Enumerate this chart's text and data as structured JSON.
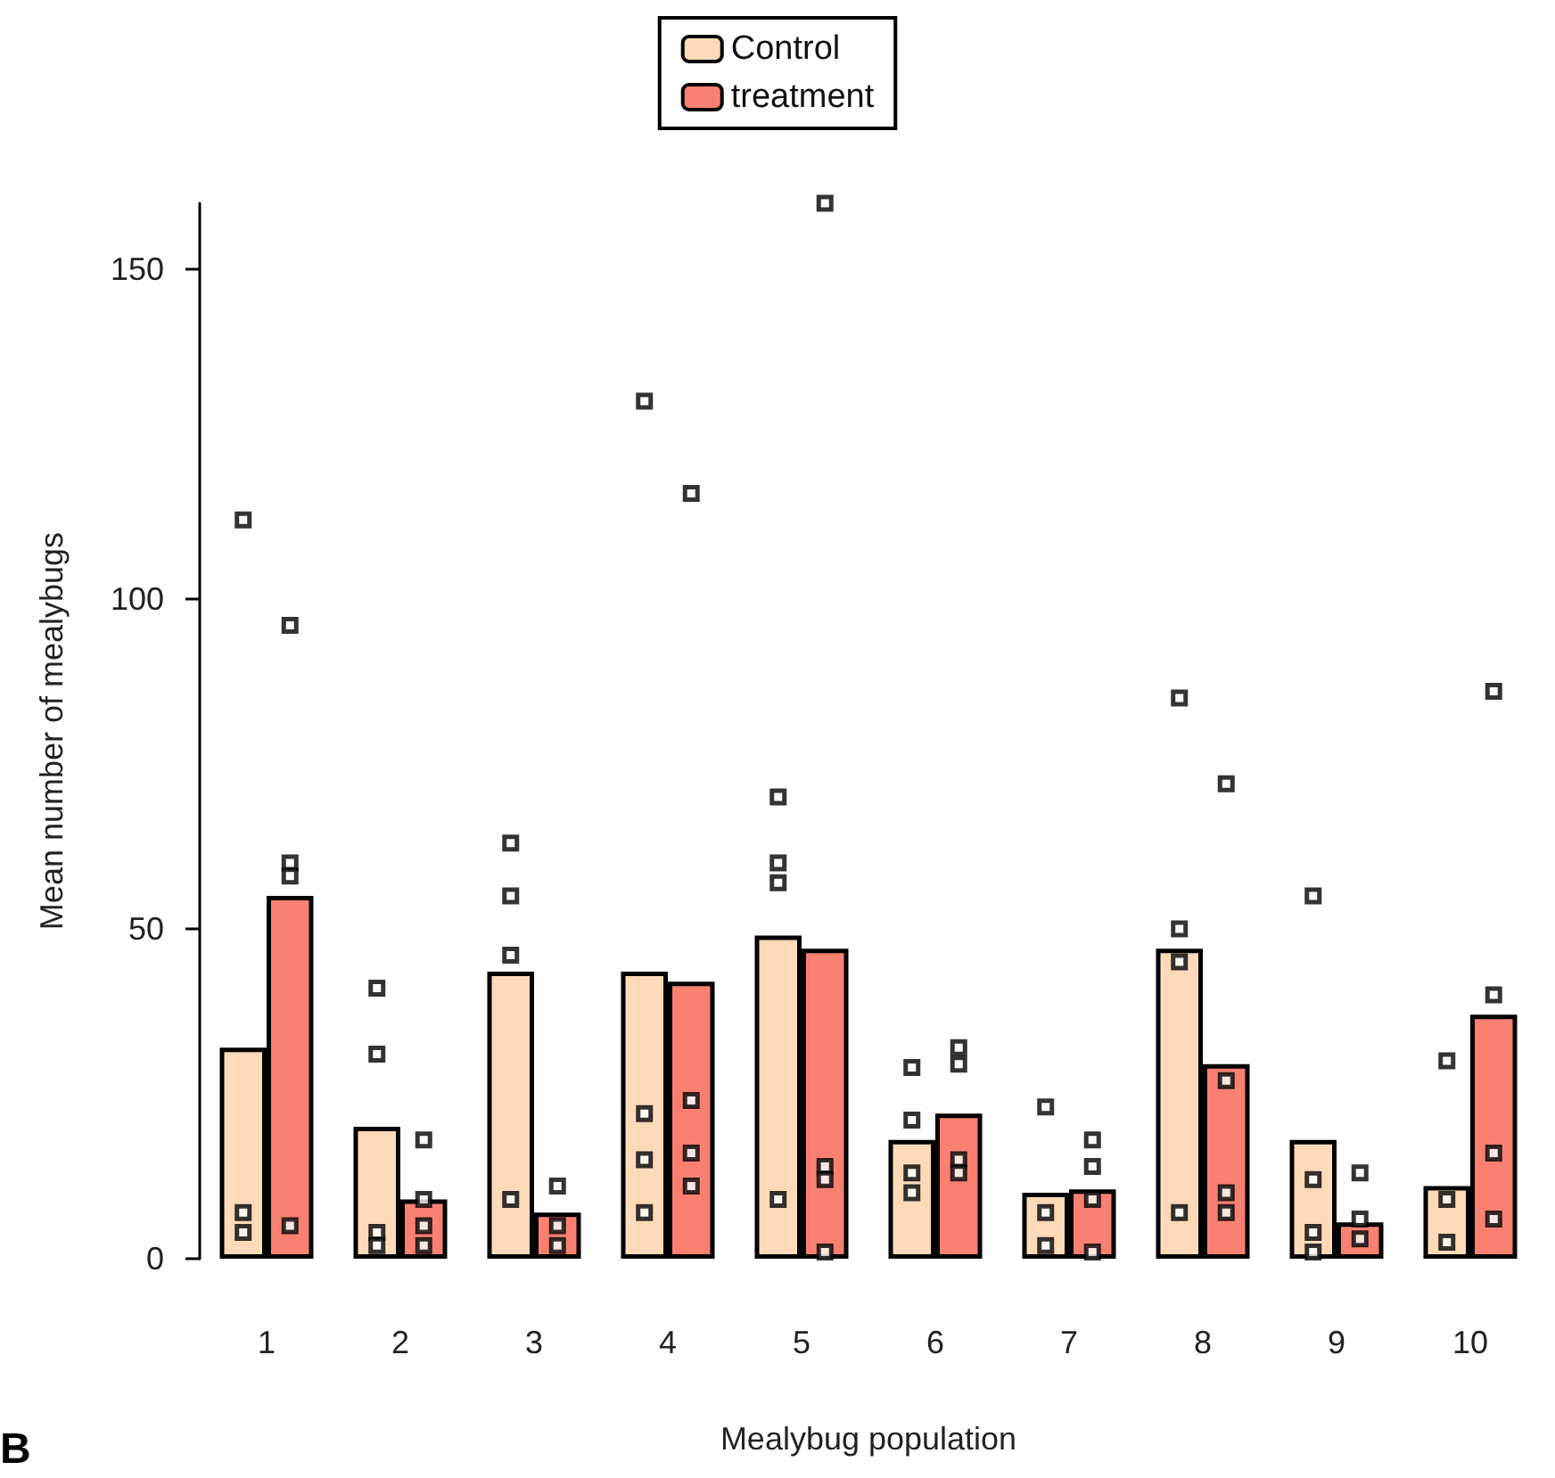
{
  "chart_data": {
    "type": "bar",
    "xlabel": "Mealybug population",
    "ylabel": "Mean number of mealybugs",
    "categories": [
      "1",
      "2",
      "3",
      "4",
      "5",
      "6",
      "7",
      "8",
      "9",
      "10"
    ],
    "series": [
      {
        "name": "Control",
        "color": "#ffdab9",
        "values": [
          32,
          20,
          43.5,
          43.5,
          49,
          18,
          10,
          47,
          18,
          11
        ]
      },
      {
        "name": "treatment",
        "color": "#fa8072",
        "values": [
          55,
          9,
          7,
          42,
          47,
          22,
          10.5,
          29.5,
          5.5,
          37
        ]
      },
      {
        "type": "scatter",
        "color": "#000000",
        "x": [
          "1",
          "1",
          "1",
          "2",
          "2",
          "2",
          "2",
          "3",
          "3",
          "3",
          "3",
          "4",
          "4",
          "4",
          "4",
          "5",
          "5",
          "5",
          "5",
          "6",
          "6",
          "6",
          "6",
          "7",
          "7",
          "7",
          "8",
          "8",
          "8",
          "8",
          "9",
          "9",
          "9",
          "9",
          "10",
          "10",
          "10"
        ],
        "values": [
          112,
          7,
          4,
          41,
          31,
          4,
          2,
          63,
          55,
          46,
          9,
          130,
          22,
          15,
          7,
          70,
          60,
          57,
          9,
          29,
          21,
          13,
          10,
          23,
          7,
          2,
          85,
          50,
          45,
          7,
          55,
          12,
          4,
          1,
          30,
          9,
          2.5
        ]
      },
      {
        "type": "scatter",
        "color": "#000000",
        "x": [
          "1",
          "1",
          "1",
          "1",
          "2",
          "2",
          "2",
          "2",
          "3",
          "3",
          "3",
          "4",
          "4",
          "4",
          "4",
          "5",
          "5",
          "5",
          "5",
          "6",
          "6",
          "6",
          "6",
          "7",
          "7",
          "7",
          "7",
          "8",
          "8",
          "8",
          "8",
          "9",
          "9",
          "9",
          "10",
          "10",
          "10",
          "10"
        ],
        "values": [
          96,
          60,
          58,
          5,
          18,
          9,
          5,
          2,
          11,
          5,
          2,
          116,
          24,
          16,
          11,
          160,
          14,
          12,
          1,
          32,
          29.5,
          15,
          13,
          18,
          14,
          9,
          1,
          72,
          27,
          10,
          7,
          13,
          6,
          3,
          86,
          40,
          16,
          6
        ]
      }
    ],
    "ylim": [
      0,
      160
    ],
    "yticks": [
      0,
      50,
      100,
      150
    ],
    "grid": false,
    "legend": "top",
    "marker": "square",
    "annotations": [
      "B"
    ]
  }
}
